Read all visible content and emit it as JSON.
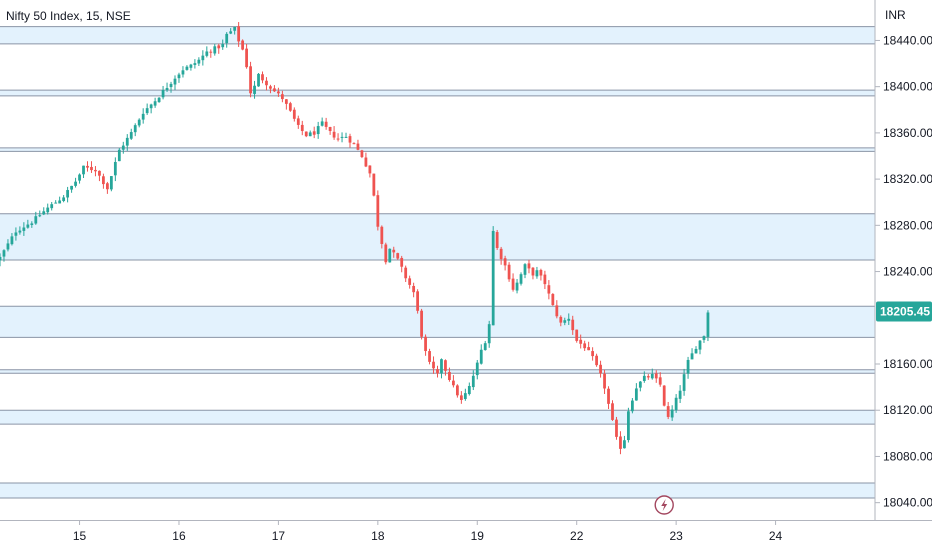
{
  "legend": {
    "title": "Nifty 50 Index, 15, NSE"
  },
  "colors": {
    "up": "#26a69a",
    "down": "#ef5350",
    "zone_fill": "#e3f2fd",
    "zone_line": "#8a94a6",
    "axis_line": "#b2b5be",
    "last_price_bg": "#26a69a",
    "bolt_icon": "#a3475f"
  },
  "chart_data": {
    "type": "candlestick",
    "title": "Nifty 50 Index, 15, NSE",
    "currency": "INR",
    "y_ticks": [
      "18440.00",
      "18400.00",
      "18360.00",
      "18320.00",
      "18280.00",
      "18240.00",
      "18160.00",
      "18120.00",
      "18080.00",
      "18040.00"
    ],
    "y_tick_values": [
      18440,
      18400,
      18360,
      18320,
      18280,
      18240,
      18160,
      18120,
      18080,
      18040
    ],
    "ylim": [
      18025,
      18475
    ],
    "x_ticks": [
      "15",
      "16",
      "17",
      "18",
      "19",
      "22",
      "23",
      "24"
    ],
    "x_tick_index": [
      3,
      28,
      53,
      78,
      103,
      128,
      153,
      178
    ],
    "x_range": [
      -17,
      203
    ],
    "last_price": "18205.45",
    "last_price_value": 18205.45,
    "zones": [
      {
        "top": 18452,
        "bottom": 18437
      },
      {
        "top": 18397,
        "bottom": 18392
      },
      {
        "top": 18347,
        "bottom": 18344
      },
      {
        "top": 18290,
        "bottom": 18250
      },
      {
        "top": 18210,
        "bottom": 18183
      },
      {
        "top": 18155,
        "bottom": 18152
      },
      {
        "top": 18120,
        "bottom": 18108
      },
      {
        "top": 18057,
        "bottom": 18044
      }
    ],
    "close_path": [
      [
        -17,
        18252
      ],
      [
        -13,
        18275
      ],
      [
        -9,
        18283
      ],
      [
        -5,
        18295
      ],
      [
        -1,
        18305
      ],
      [
        2,
        18318
      ],
      [
        4,
        18330
      ],
      [
        7,
        18328
      ],
      [
        10,
        18312
      ],
      [
        13,
        18345
      ],
      [
        16,
        18360
      ],
      [
        19,
        18378
      ],
      [
        22,
        18388
      ],
      [
        25,
        18400
      ],
      [
        27,
        18408
      ],
      [
        29,
        18415
      ],
      [
        31,
        18418
      ],
      [
        33,
        18423
      ],
      [
        35,
        18430
      ],
      [
        37,
        18433
      ],
      [
        39,
        18436
      ],
      [
        40,
        18445
      ],
      [
        42,
        18450
      ],
      [
        43,
        18440
      ],
      [
        44,
        18432
      ],
      [
        45,
        18418
      ],
      [
        46,
        18395
      ],
      [
        47,
        18400
      ],
      [
        48,
        18410
      ],
      [
        50,
        18403
      ],
      [
        52,
        18396
      ],
      [
        54,
        18390
      ],
      [
        56,
        18378
      ],
      [
        58,
        18365
      ],
      [
        60,
        18358
      ],
      [
        62,
        18360
      ],
      [
        64,
        18368
      ],
      [
        66,
        18360
      ],
      [
        68,
        18355
      ],
      [
        70,
        18357
      ],
      [
        72,
        18350
      ],
      [
        74,
        18340
      ],
      [
        76,
        18325
      ],
      [
        77,
        18305
      ],
      [
        78,
        18280
      ],
      [
        79,
        18265
      ],
      [
        80,
        18250
      ],
      [
        81,
        18260
      ],
      [
        83,
        18250
      ],
      [
        85,
        18235
      ],
      [
        87,
        18222
      ],
      [
        88,
        18205
      ],
      [
        89,
        18185
      ],
      [
        90,
        18170
      ],
      [
        91,
        18160
      ],
      [
        93,
        18150
      ],
      [
        94,
        18165
      ],
      [
        95,
        18155
      ],
      [
        97,
        18140
      ],
      [
        99,
        18128
      ],
      [
        101,
        18140
      ],
      [
        103,
        18160
      ],
      [
        104,
        18172
      ],
      [
        105,
        18180
      ],
      [
        106,
        18195
      ],
      [
        107,
        18275
      ],
      [
        108,
        18260
      ],
      [
        110,
        18245
      ],
      [
        112,
        18225
      ],
      [
        113,
        18230
      ],
      [
        115,
        18245
      ],
      [
        117,
        18238
      ],
      [
        118,
        18240
      ],
      [
        120,
        18230
      ],
      [
        122,
        18210
      ],
      [
        124,
        18195
      ],
      [
        126,
        18200
      ],
      [
        128,
        18180
      ],
      [
        130,
        18175
      ],
      [
        132,
        18165
      ],
      [
        134,
        18150
      ],
      [
        135,
        18140
      ],
      [
        136,
        18125
      ],
      [
        137,
        18110
      ],
      [
        138,
        18095
      ],
      [
        139,
        18088
      ],
      [
        140,
        18095
      ],
      [
        141,
        18120
      ],
      [
        143,
        18140
      ],
      [
        145,
        18148
      ],
      [
        147,
        18150
      ],
      [
        149,
        18142
      ],
      [
        150,
        18125
      ],
      [
        151,
        18113
      ],
      [
        152,
        18120
      ],
      [
        154,
        18138
      ],
      [
        156,
        18162
      ],
      [
        158,
        18175
      ],
      [
        160,
        18185
      ],
      [
        161,
        18205
      ]
    ]
  }
}
